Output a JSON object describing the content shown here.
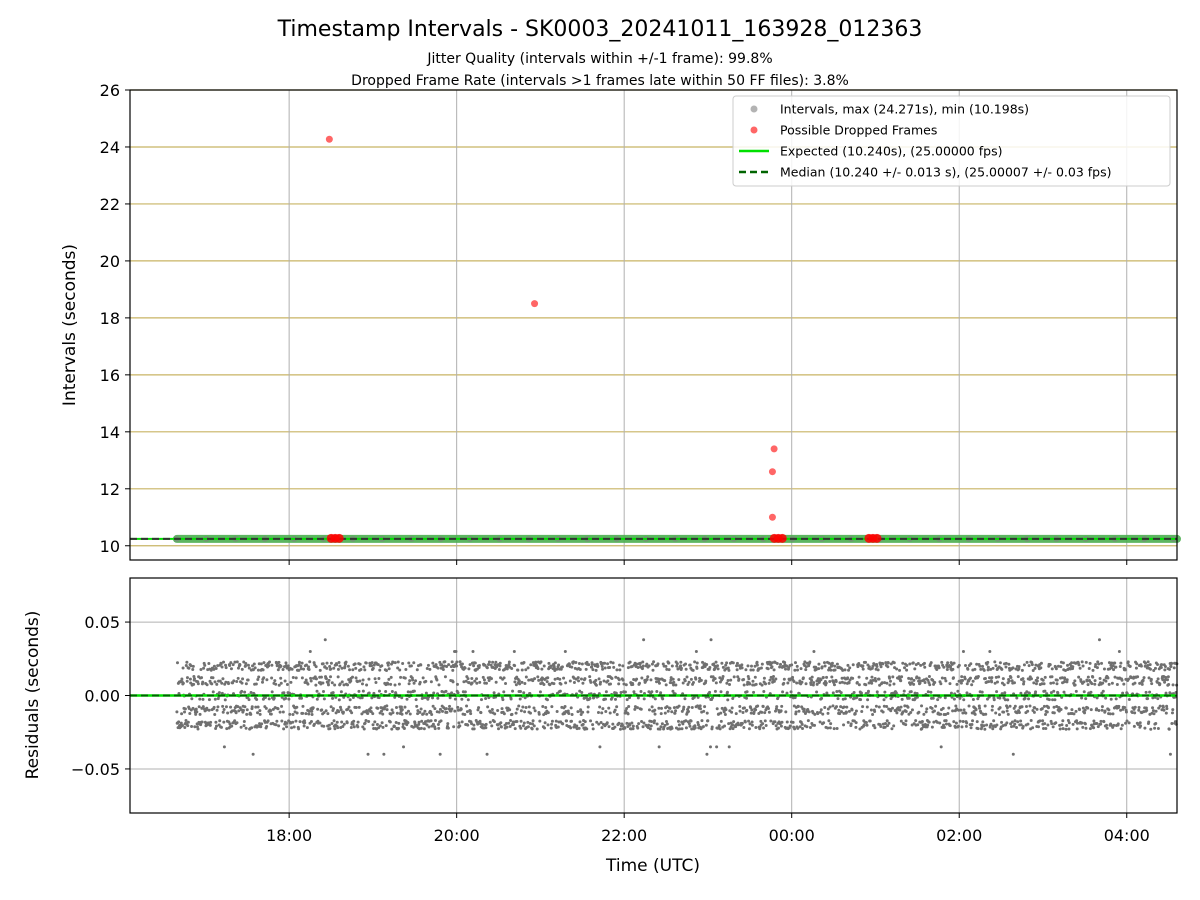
{
  "figure": {
    "title": "Timestamp Intervals - SK0003_20241011_163928_012363",
    "subtitle_1": "Jitter Quality (intervals within +/-1 frame): 99.8%",
    "subtitle_2": "Dropped Frame Rate (intervals >1 frames late within 50 FF files): 3.8%"
  },
  "colors": {
    "intervals": "#808080",
    "dropped": "#ff0000",
    "expected": "#00e000",
    "median": "#006400",
    "median_band": "#4caf50",
    "hgrid_top": "#c8b464",
    "grid": "#b0b0b0",
    "residuals": "#707070"
  },
  "chart_data": [
    {
      "type": "scatter",
      "name": "intervals",
      "xlabel": "",
      "ylabel": "Intervals (seconds)",
      "x_unit": "hours (UTC clock, values past 24 wrap to next day)",
      "xlim": [
        16.1,
        28.6
      ],
      "ylim": [
        9.5,
        26
      ],
      "yticks": [
        10,
        12,
        14,
        16,
        18,
        20,
        22,
        24,
        26
      ],
      "xticks": [
        18,
        20,
        22,
        24,
        26,
        28
      ],
      "xtick_labels": [
        "18:00",
        "20:00",
        "22:00",
        "00:00",
        "02:00",
        "04:00"
      ],
      "grid": true,
      "legend_position": "top-right",
      "legend": [
        {
          "label": "Intervals, max (24.271s), min (10.198s)",
          "kind": "dot",
          "color_key": "intervals"
        },
        {
          "label": "Possible Dropped Frames",
          "kind": "dot",
          "color_key": "dropped"
        },
        {
          "label": "Expected (10.240s), (25.00000 fps)",
          "kind": "line",
          "color_key": "expected"
        },
        {
          "label": "Median (10.240 +/- 0.013 s), (25.00007 +/- 0.03 fps)",
          "kind": "dashed",
          "color_key": "median"
        }
      ],
      "series": [
        {
          "name": "Intervals",
          "x_range": [
            16.66,
            28.6
          ],
          "y_nominal": 10.24
        },
        {
          "name": "Possible Dropped Frames",
          "points": [
            {
              "x": 18.48,
              "y": 24.27
            },
            {
              "x": 23.79,
              "y": 13.4
            },
            {
              "x": 23.77,
              "y": 12.6
            },
            {
              "x": 23.77,
              "y": 11.0
            },
            {
              "x": 20.93,
              "y": 18.5
            },
            {
              "x": 18.55,
              "y": 10.26
            },
            {
              "x": 23.84,
              "y": 10.26
            },
            {
              "x": 24.97,
              "y": 10.26
            }
          ]
        },
        {
          "name": "Expected",
          "y": 10.24
        },
        {
          "name": "Median",
          "y": 10.24
        }
      ]
    },
    {
      "type": "scatter",
      "name": "residuals",
      "xlabel": "Time (UTC)",
      "ylabel": "Residuals (seconds)",
      "xlim": [
        16.1,
        28.6
      ],
      "ylim": [
        -0.08,
        0.08
      ],
      "yticks": [
        0.05,
        0.0,
        -0.05
      ],
      "ytick_labels": [
        "0.05",
        "0.00",
        "−0.05"
      ],
      "xticks": [
        18,
        20,
        22,
        24,
        26,
        28
      ],
      "xtick_labels": [
        "18:00",
        "20:00",
        "22:00",
        "00:00",
        "02:00",
        "04:00"
      ],
      "grid": true,
      "series": [
        {
          "name": "Residuals",
          "x_range": [
            16.66,
            28.6
          ],
          "levels": [
            -0.02,
            -0.01,
            0.0,
            0.01,
            0.02
          ],
          "level_jitter": 0.003,
          "outliers": [
            -0.04,
            -0.035,
            0.03,
            0.038
          ]
        },
        {
          "name": "Zero line",
          "y": 0.0
        }
      ]
    }
  ]
}
